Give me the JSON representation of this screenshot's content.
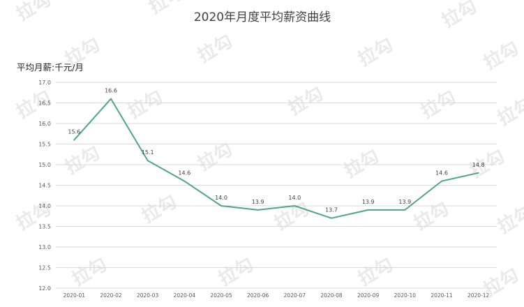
{
  "chart_data": {
    "type": "line",
    "title": "2020年月度平均薪资曲线",
    "ylabel": "平均月薪:千元/月",
    "xlabel": "",
    "categories": [
      "2020-01",
      "2020-02",
      "2020-03",
      "2020-04",
      "2020-05",
      "2020-06",
      "2020-07",
      "2020-08",
      "2020-09",
      "2020-10",
      "2020-11",
      "2020-12"
    ],
    "values": [
      15.6,
      16.6,
      15.1,
      14.6,
      14.0,
      13.9,
      14.0,
      13.7,
      13.9,
      13.9,
      14.6,
      14.8
    ],
    "data_labels": [
      "15.6",
      "16.6",
      "15.1",
      "14.6",
      "14.0",
      "13.9",
      "14.0",
      "13.7",
      "13.9",
      "13.9",
      "14.6",
      "14.8"
    ],
    "y_ticks": [
      "17.0",
      "16.5",
      "16.0",
      "15.5",
      "15.0",
      "14.5",
      "14.0",
      "13.5",
      "13.0",
      "12.5",
      "12.0"
    ],
    "ylim": [
      12.0,
      17.0
    ],
    "grid": true,
    "legend": "none",
    "line_color": "#4ea58a",
    "grid_color": "#d9d9d9",
    "watermark_text": "拉勾"
  }
}
